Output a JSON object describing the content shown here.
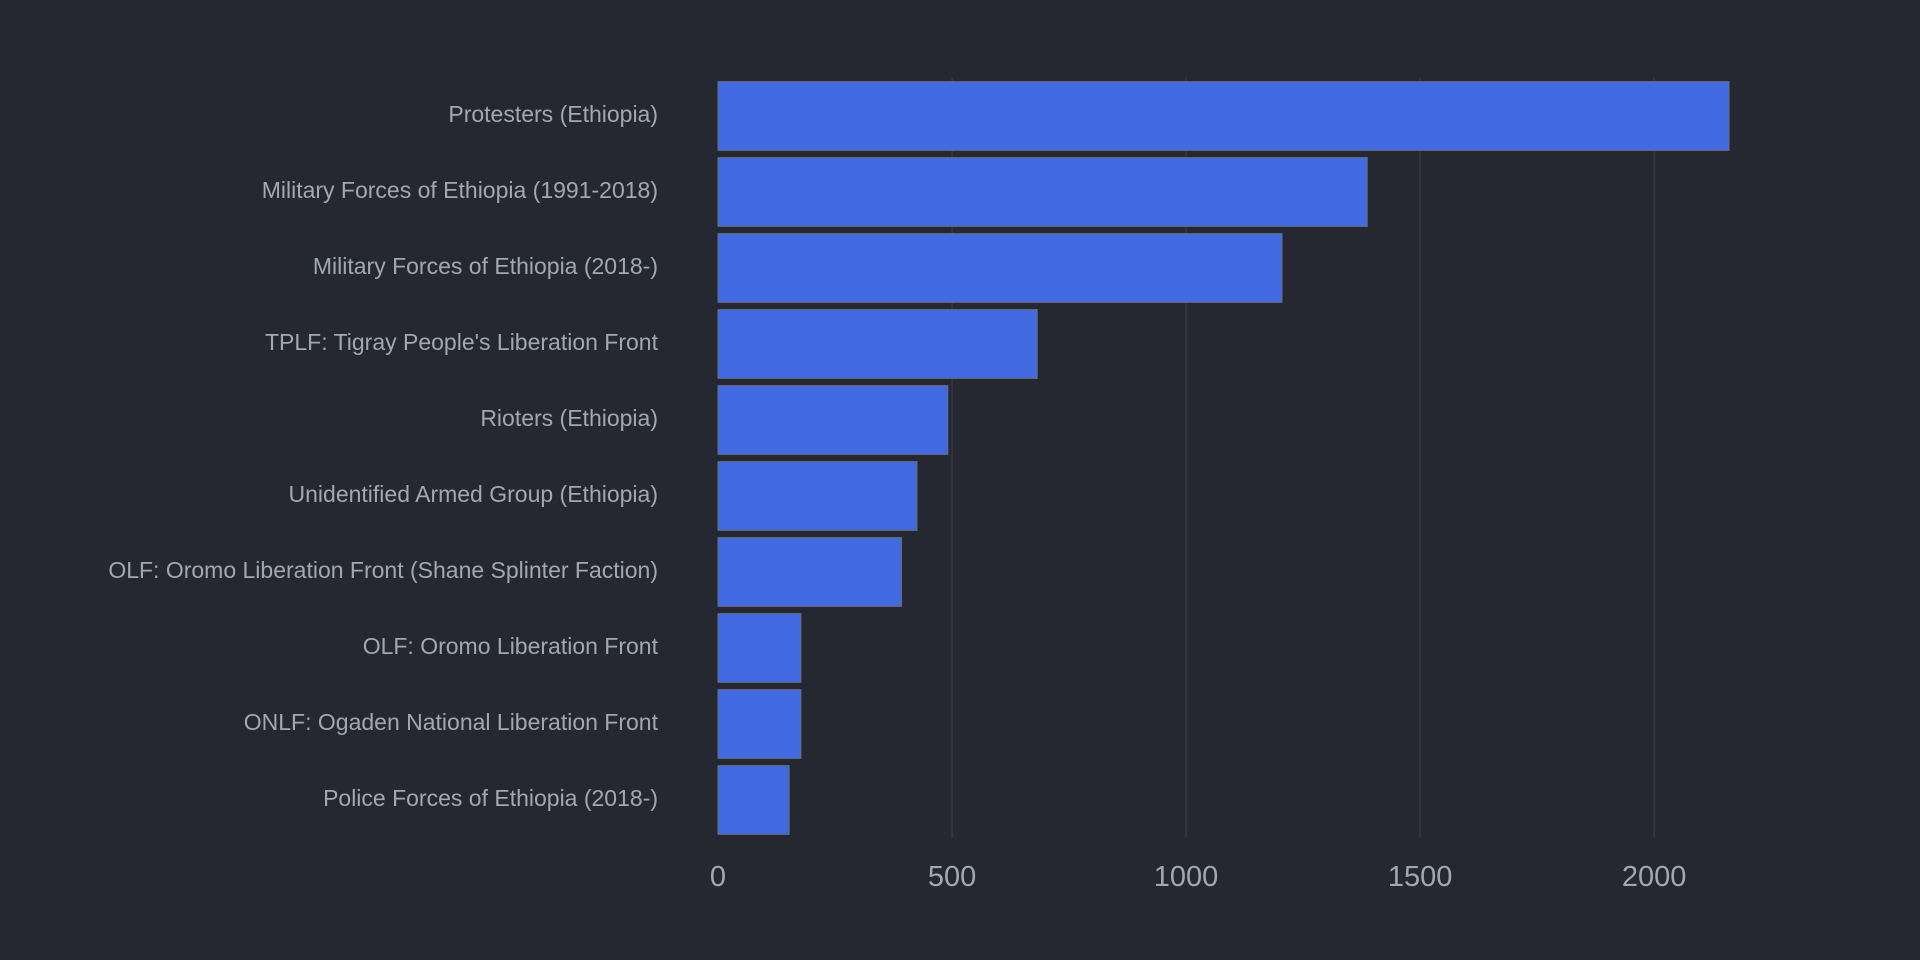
{
  "chart_data": {
    "type": "bar",
    "orientation": "horizontal",
    "categories": [
      "Protesters (Ethiopia)",
      "Military Forces of Ethiopia (1991-2018)",
      "Military Forces of Ethiopia (2018-)",
      "TPLF: Tigray People's Liberation Front",
      "Rioters (Ethiopia)",
      "Unidentified Armed Group (Ethiopia)",
      "OLF: Oromo Liberation Front (Shane Splinter Faction)",
      "OLF: Oromo Liberation Front",
      "ONLF: Ogaden National Liberation Front",
      "Police Forces of Ethiopia (2018-)"
    ],
    "values": [
      2160,
      1387,
      1205,
      682,
      491,
      425,
      392,
      177,
      177,
      152
    ],
    "xlim": [
      0,
      2380
    ],
    "x_ticks": [
      0,
      500,
      1000,
      1500,
      2000
    ],
    "x_tick_labels": [
      "0",
      "500",
      "1000",
      "1500",
      "2000"
    ],
    "title": "",
    "xlabel": "",
    "ylabel": "",
    "grid": "vertical",
    "legend": "none",
    "colors": {
      "background": "#252830",
      "bar": "#4169e1",
      "bar_edge": "#6b6f7a",
      "grid": "#3d414b",
      "text": "#a3a7b0"
    }
  }
}
